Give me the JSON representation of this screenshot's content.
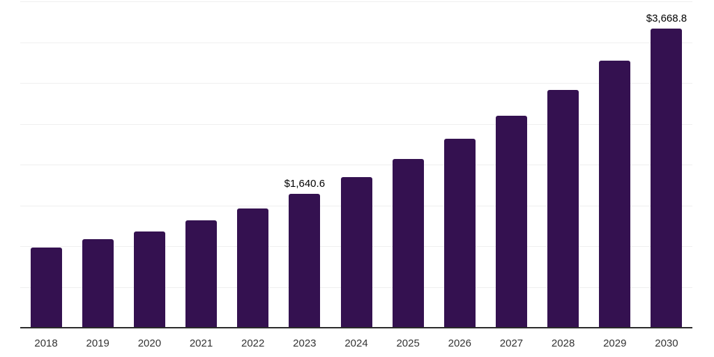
{
  "chart_data": {
    "type": "bar",
    "title": "",
    "xlabel": "",
    "ylabel": "",
    "categories": [
      "2018",
      "2019",
      "2020",
      "2021",
      "2022",
      "2023",
      "2024",
      "2025",
      "2026",
      "2027",
      "2028",
      "2029",
      "2030"
    ],
    "values": [
      985,
      1085,
      1180,
      1315,
      1460,
      1640.6,
      1845,
      2065,
      2315,
      2600,
      2915,
      3270,
      3668.8
    ],
    "data_labels": [
      "",
      "",
      "",
      "",
      "",
      "$1,640.6",
      "",
      "",
      "",
      "",
      "",
      "",
      "$3,668.8"
    ],
    "ylim": [
      0,
      4000
    ],
    "gridline_step": 500,
    "grid_on": true,
    "legend_position": "none",
    "colors": {
      "bar": "#341150",
      "grid": "#efefef",
      "axis": "#2a2a2a",
      "tick_label": "#333333",
      "data_label": "#000000",
      "background": "#ffffff"
    }
  }
}
